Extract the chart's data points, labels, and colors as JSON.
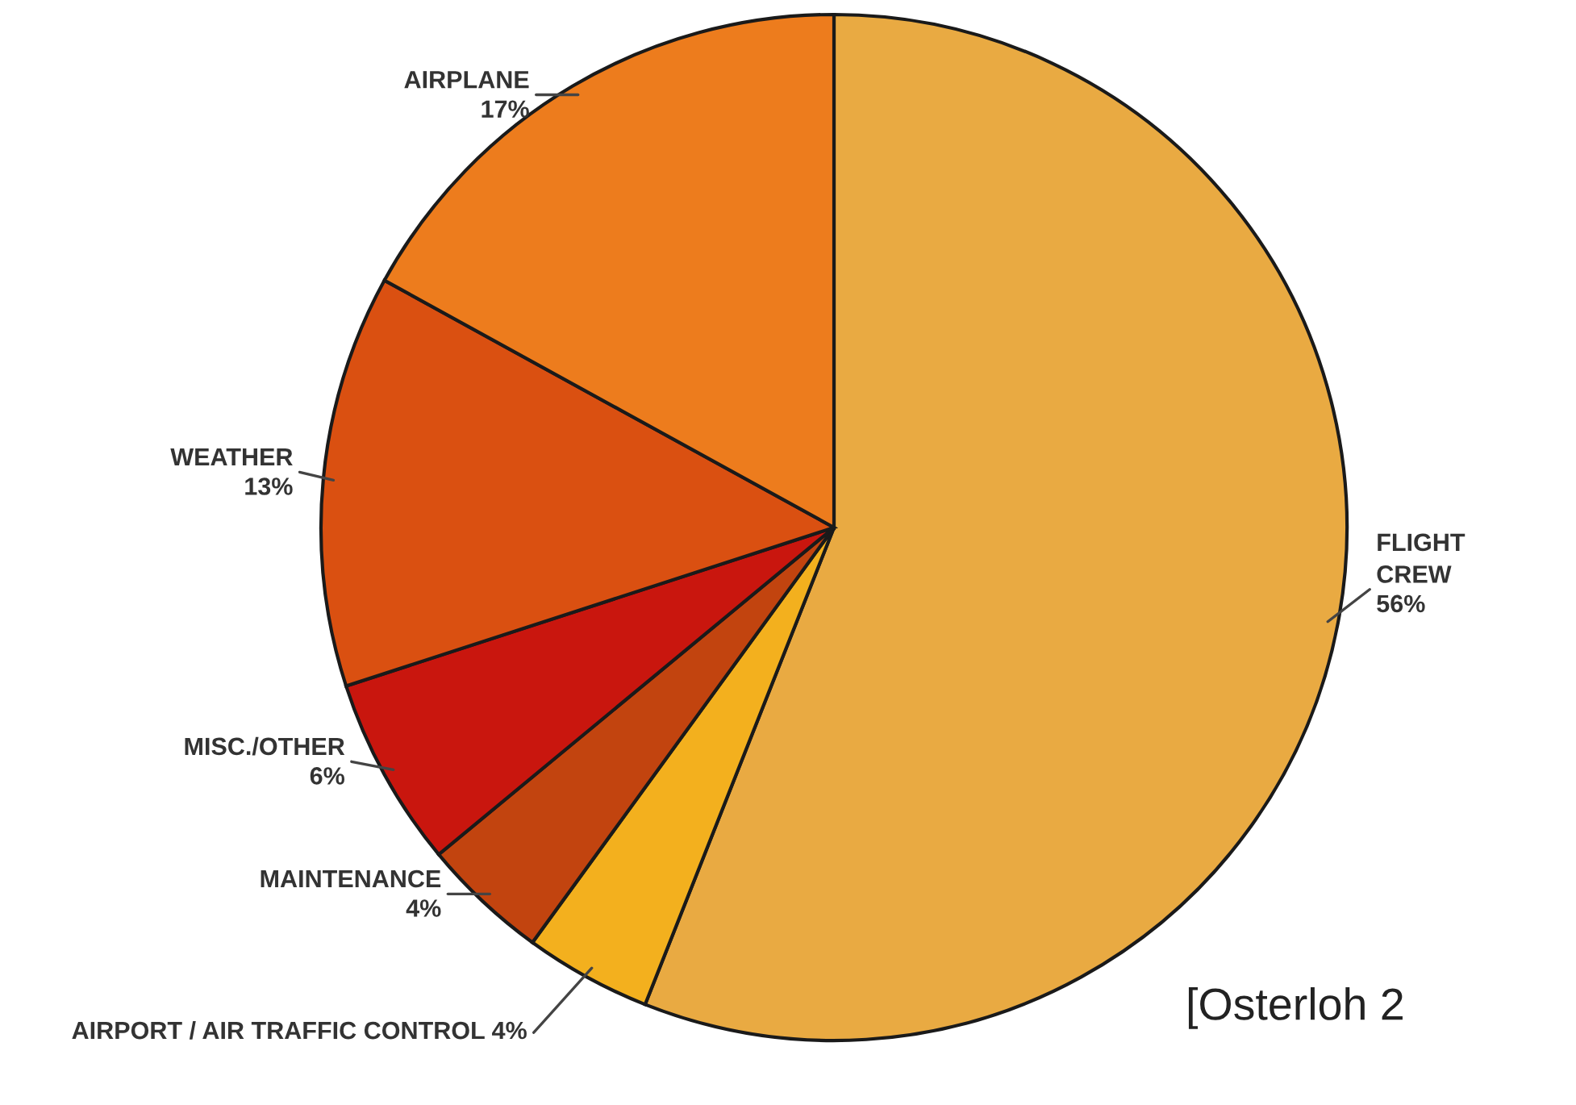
{
  "chart_data": {
    "type": "pie",
    "categories": [
      "FLIGHT\nCREW",
      "AIRPORT / AIR TRAFFIC CONTROL",
      "MAINTENANCE",
      "MISC./OTHER",
      "WEATHER",
      "AIRPLANE"
    ],
    "values": [
      56,
      4,
      4,
      6,
      13,
      17
    ],
    "value_labels": [
      "56%",
      "4%",
      "4%",
      "6%",
      "13%",
      "17%"
    ],
    "colors": [
      "#e9aa42",
      "#f3b01e",
      "#c2440f",
      "#c9160e",
      "#da5011",
      "#ed7c1d"
    ],
    "annotations": [
      "[Osterloh 2"
    ],
    "legend": false
  }
}
